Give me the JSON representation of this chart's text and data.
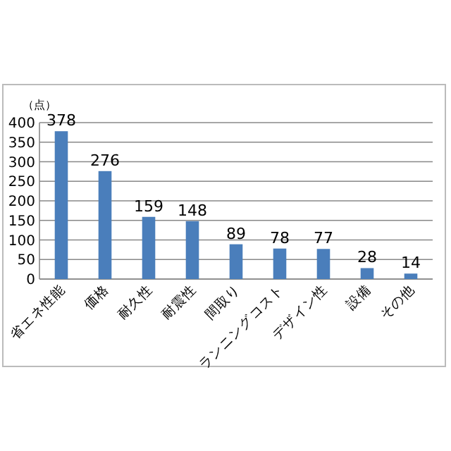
{
  "chart_data": {
    "type": "bar",
    "ylabel": "（点）",
    "categories": [
      "省エネ性能",
      "価格",
      "耐久性",
      "耐震性",
      "間取り",
      "ランニングコスト",
      "デザイン性",
      "設備",
      "その他"
    ],
    "values": [
      378,
      276,
      159,
      148,
      89,
      78,
      77,
      28,
      14
    ],
    "color": "#4a7ebb",
    "ylim": [
      0,
      400
    ],
    "yticks": [
      0,
      50,
      100,
      150,
      200,
      250,
      300,
      350,
      400
    ],
    "grid": "y",
    "data_labels": true
  }
}
